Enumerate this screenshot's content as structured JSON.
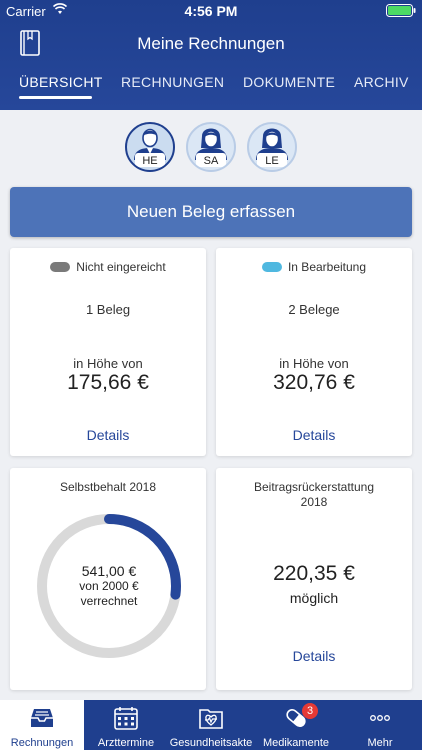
{
  "status_bar": {
    "carrier": "Carrier",
    "time": "4:56 PM"
  },
  "header": {
    "title": "Meine Rechnungen",
    "icon": "document-icon"
  },
  "tabs": [
    {
      "label": "ÜBERSICHT",
      "active": true
    },
    {
      "label": "RECHNUNGEN",
      "active": false
    },
    {
      "label": "DOKUMENTE",
      "active": false
    },
    {
      "label": "ARCHIV",
      "active": false
    }
  ],
  "avatars": [
    {
      "initials": "HE",
      "gender": "male",
      "active": true
    },
    {
      "initials": "SA",
      "gender": "female",
      "active": false
    },
    {
      "initials": "LE",
      "gender": "female",
      "active": false
    }
  ],
  "primary_button": {
    "label": "Neuen Beleg erfassen"
  },
  "cards": {
    "nicht_eingereicht": {
      "status": "Nicht eingereicht",
      "status_color": "#7a7a7a",
      "count": "1 Beleg",
      "amount_label": "in Höhe von",
      "amount": "175,66 €",
      "link": "Details"
    },
    "in_bearbeitung": {
      "status": "In Bearbeitung",
      "status_color": "#4fb8e0",
      "count": "2 Belege",
      "amount_label": "in Höhe von",
      "amount": "320,76 €",
      "link": "Details"
    },
    "selbstbehalt": {
      "title": "Selbstbehalt 2018",
      "amount": "541,00 €",
      "of_total": "von 2000 €",
      "suffix": "verrechnet",
      "progress_fraction": 0.2705,
      "progress_color": "#26479a",
      "track_color": "#d9d9d9"
    },
    "beitragsrueckerstattung": {
      "title_line1": "Beitragsrückerstattung",
      "title_line2": "2018",
      "amount": "220,35 €",
      "subtitle": "möglich",
      "link": "Details"
    }
  },
  "tab_bar": [
    {
      "label": "Rechnungen",
      "icon": "inbox-tray-icon",
      "active": true
    },
    {
      "label": "Arzttermine",
      "icon": "calendar-icon",
      "active": false
    },
    {
      "label": "Gesundheitsakte",
      "icon": "health-folder-icon",
      "active": false
    },
    {
      "label": "Medikamente",
      "icon": "pill-icon",
      "active": false,
      "badge": "3"
    },
    {
      "label": "Mehr",
      "icon": "more-icon",
      "active": false
    }
  ],
  "colors": {
    "brand": "#1f3f8e",
    "button": "#4d73b8",
    "link": "#26479a"
  }
}
